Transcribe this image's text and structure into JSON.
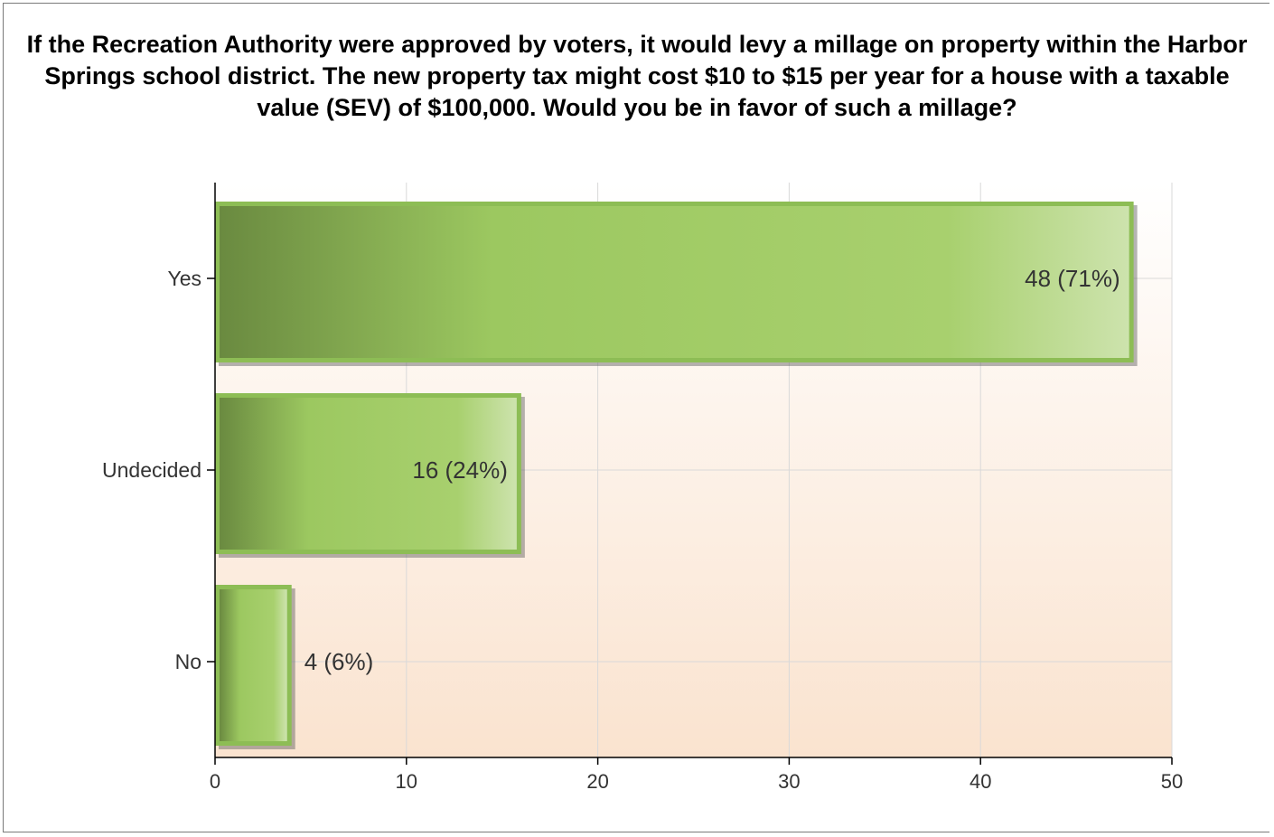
{
  "chart_data": {
    "type": "bar",
    "orientation": "horizontal",
    "title": "If the Recreation Authority were approved by voters, it would levy a millage on property within the Harbor Springs school district.  The new property tax might cost $10 to $15 per year for a house with a taxable value (SEV) of $100,000.  Would you be in favor of such a millage?",
    "categories": [
      "Yes",
      "Undecided",
      "No"
    ],
    "values": [
      48,
      16,
      4
    ],
    "data_labels": [
      "48 (71%)",
      "16 (24%)",
      "4 (6%)"
    ],
    "xlim": [
      0,
      50
    ],
    "xticks": [
      "0",
      "10",
      "20",
      "30",
      "40",
      "50"
    ],
    "grid": true,
    "colors": {
      "bar_dark": "#6a8a40",
      "bar_mid": "#9cc860",
      "bar_light": "#cde3ad",
      "bar_border": "#8dbd55",
      "bg_top": "#ffffff",
      "bg_bottom": "#fae3cf"
    }
  }
}
